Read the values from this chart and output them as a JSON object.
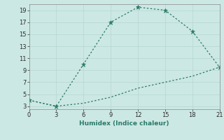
{
  "line1_x": [
    0,
    3,
    6,
    9,
    12,
    15,
    18,
    21
  ],
  "line1_y": [
    4,
    3,
    10,
    17,
    19.5,
    19,
    15.5,
    9.5
  ],
  "line2_x": [
    0,
    3,
    6,
    9,
    12,
    15,
    18,
    21
  ],
  "line2_y": [
    4,
    3,
    3.5,
    4.5,
    6,
    7,
    8,
    9.5
  ],
  "line_color": "#2a7a6a",
  "bg_color": "#cce8e4",
  "xlabel": "Humidex (Indice chaleur)",
  "xticks": [
    0,
    3,
    6,
    9,
    12,
    15,
    18,
    21
  ],
  "yticks": [
    3,
    5,
    7,
    9,
    11,
    13,
    15,
    17,
    19
  ],
  "xlim": [
    0,
    21
  ],
  "ylim": [
    2.5,
    20.0
  ],
  "grid_color": "#b8d8d4"
}
